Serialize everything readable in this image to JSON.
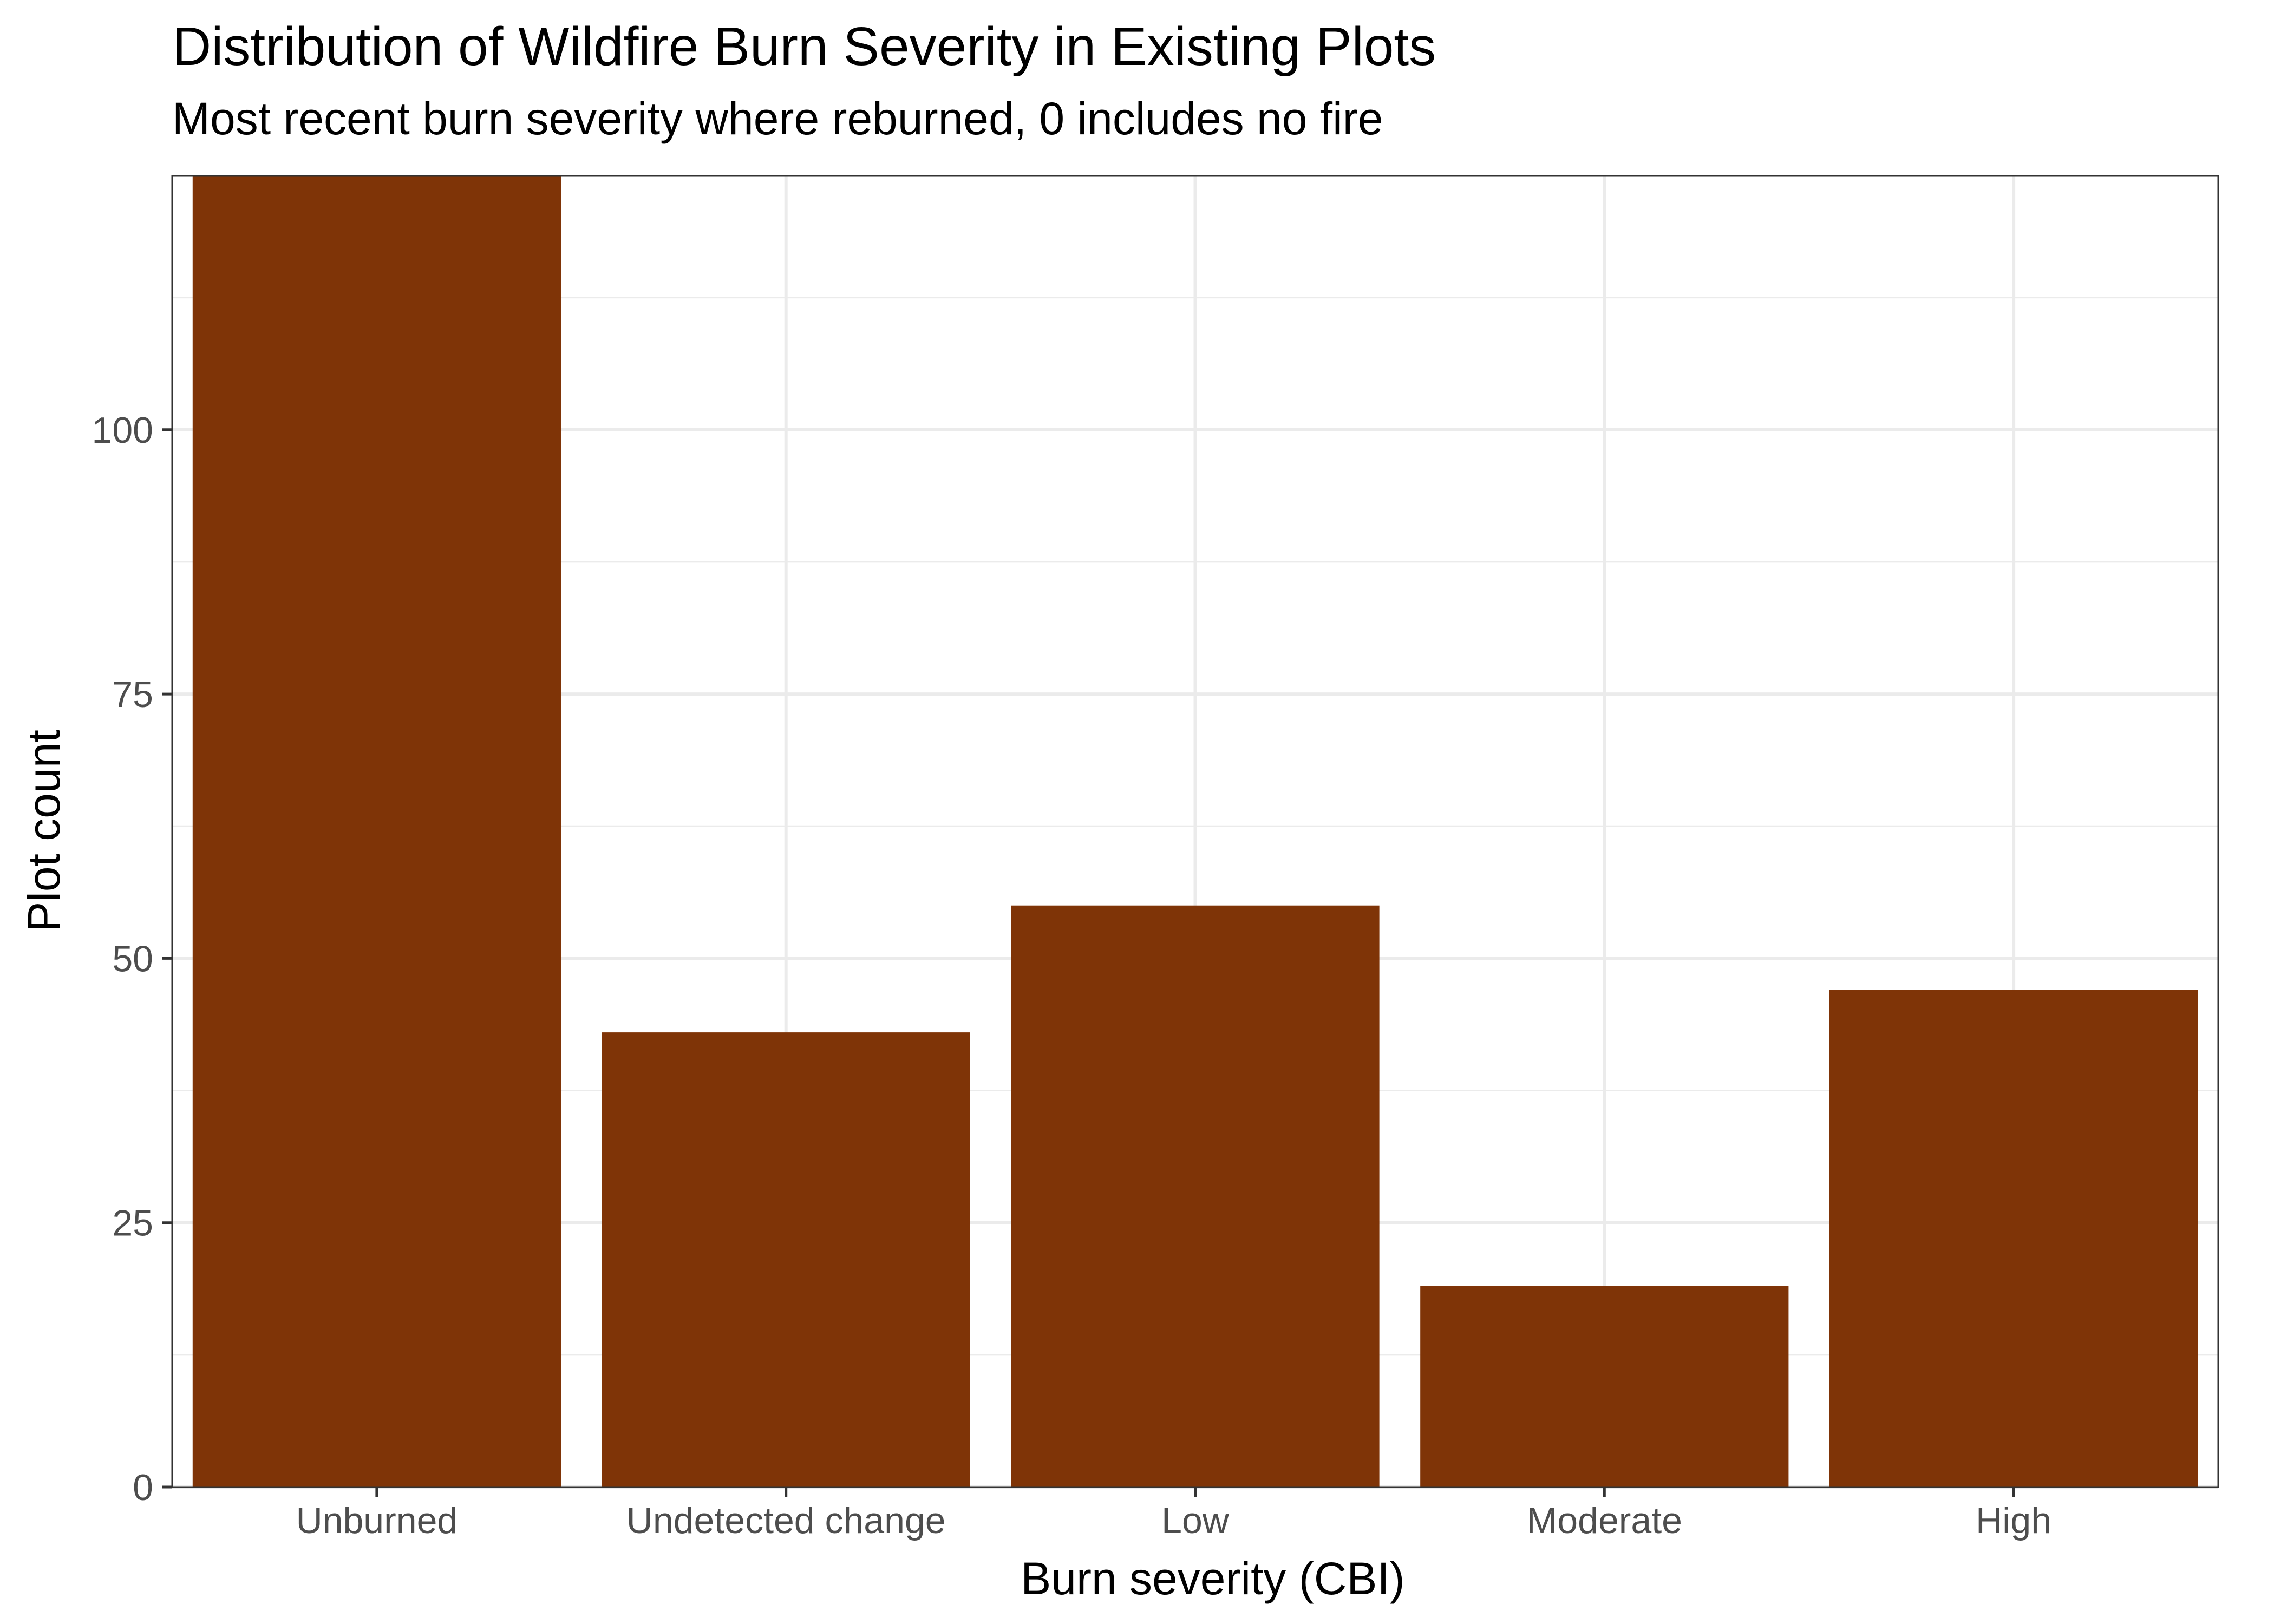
{
  "chart_data": {
    "type": "bar",
    "title": "Distribution of Wildfire Burn Severity in Existing Plots",
    "subtitle": "Most recent burn severity where reburned, 0 includes no fire",
    "xlabel": "Burn severity (CBI)",
    "ylabel": "Plot count",
    "categories": [
      "Unburned",
      "Undetected change",
      "Low",
      "Moderate",
      "High"
    ],
    "values": [
      124,
      43,
      55,
      19,
      47
    ],
    "ylim": [
      0,
      124
    ],
    "yticks": [
      0,
      25,
      50,
      75,
      100
    ],
    "grid": true,
    "legend": "none",
    "colors": {
      "bar": "#7F3407",
      "grid": "#EBEBEB",
      "panel_border": "#333333",
      "tick_text": "#4D4D4D"
    }
  }
}
